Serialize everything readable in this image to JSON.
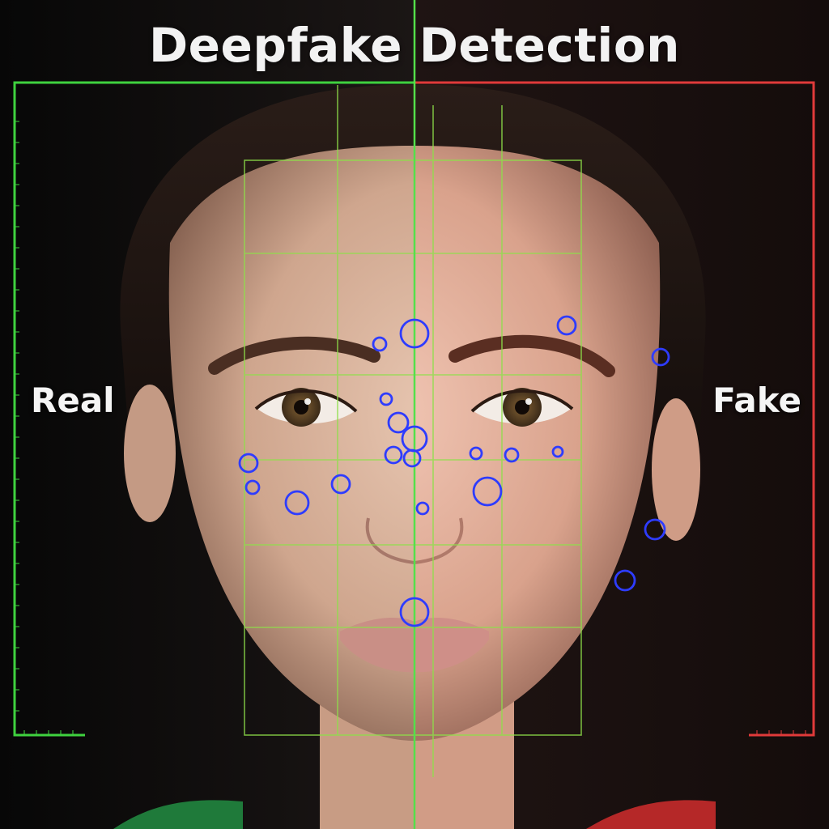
{
  "title": "Deepfake Detection",
  "labels": {
    "left": "Real",
    "right": "Fake"
  },
  "colors": {
    "real_accent": "#3fd23f",
    "fake_accent": "#e03a3a",
    "grid": "#8ee04a",
    "markers": "#2e3cff",
    "background": "#0c0b0b"
  },
  "icons": {
    "marker": "circle-marker-icon"
  }
}
